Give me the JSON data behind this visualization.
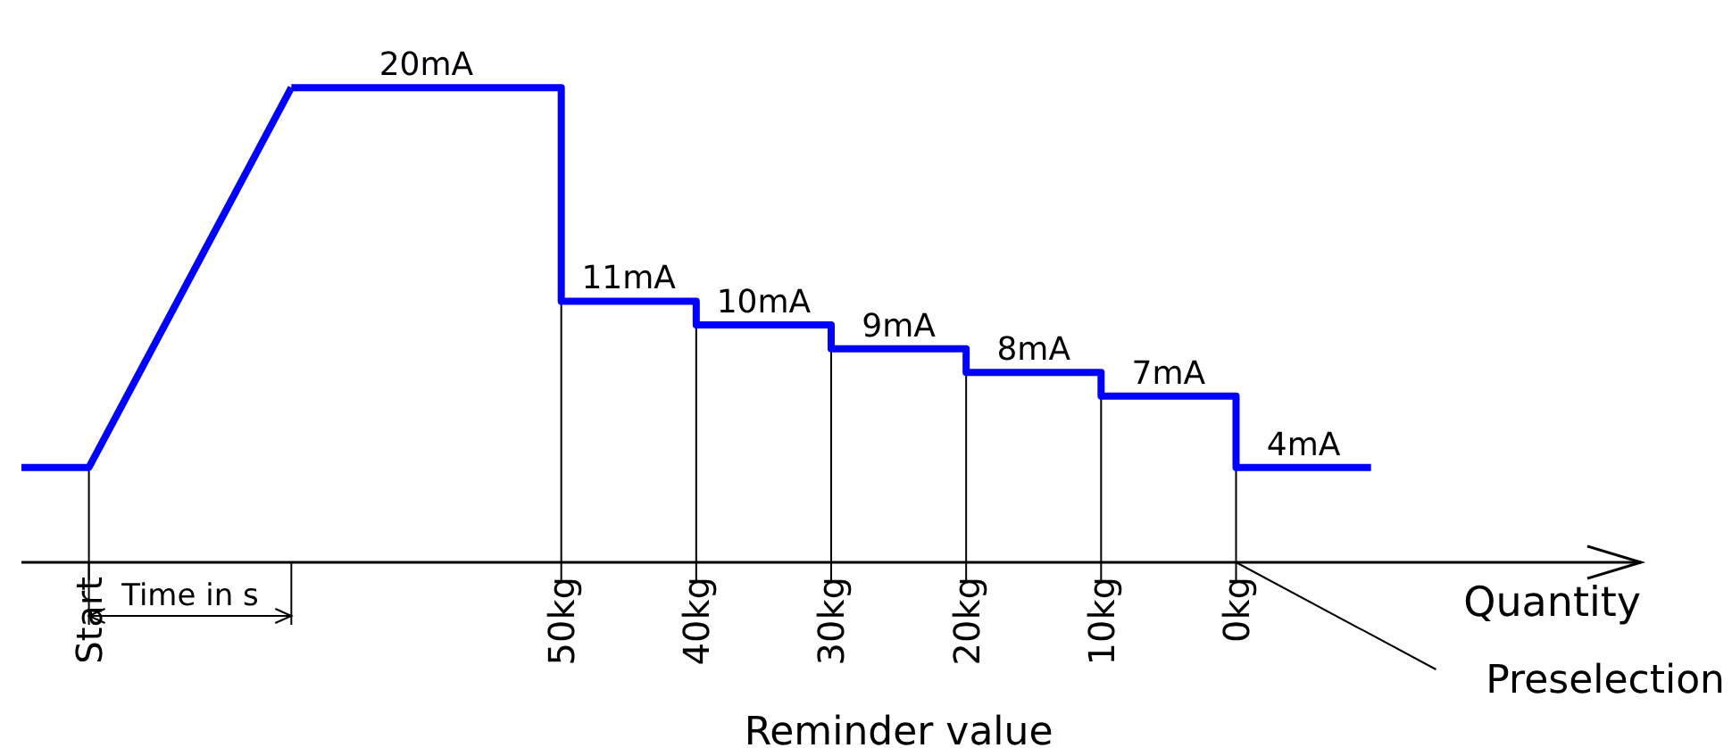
{
  "chart_data": {
    "type": "line",
    "categories": [
      null,
      "Start",
      null,
      null,
      null,
      null,
      null,
      null,
      "50kg",
      null,
      "40kg",
      null,
      "30kg",
      null,
      "20kg",
      null,
      "10kg",
      null,
      "0kg",
      null,
      null,
      null,
      null,
      null,
      null
    ],
    "series": [
      {
        "color": "#0000ff",
        "values": [
          4,
          4,
          null,
          null,
          20,
          null,
          null,
          null,
          null,
          null,
          null,
          null,
          null,
          null,
          null,
          null,
          null,
          null,
          null,
          null,
          null,
          null,
          null,
          null,
          null
        ]
      },
      {
        "type": "step",
        "color": "#0000ff",
        "values": [
          null,
          null,
          null,
          null,
          20,
          20,
          20,
          20,
          11,
          11,
          10,
          10,
          9,
          9,
          8,
          8,
          7,
          7,
          4,
          4,
          4,
          null,
          null,
          null,
          null
        ],
        "value_labels": [
          null,
          null,
          null,
          null,
          null,
          null,
          "20mA",
          null,
          null,
          "11mA",
          null,
          "10mA",
          null,
          "9mA",
          null,
          "8mA",
          null,
          "7mA",
          null,
          "4mA",
          null,
          null,
          null,
          null,
          null
        ]
      }
    ],
    "xlabel": "Quantity",
    "tick_labels": "x",
    "marker": "none",
    "line_style": "solid",
    "annotations": [
      "Time in s",
      "Reminder value",
      "Preselection"
    ]
  }
}
